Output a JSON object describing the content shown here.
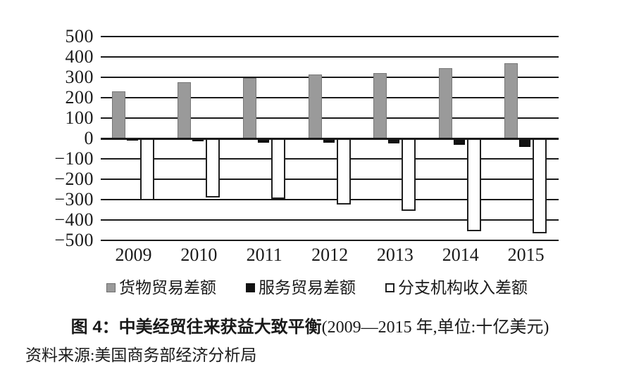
{
  "chart_data": {
    "type": "bar",
    "title": "图 4：中美经贸往来获益大致平衡",
    "subtitle": "(2009—2015 年,单位:十亿美元)",
    "categories": [
      "2009",
      "2010",
      "2011",
      "2012",
      "2013",
      "2014",
      "2015"
    ],
    "series": [
      {
        "name": "货物贸易差额",
        "color": "#9a9a9a",
        "values": [
          230,
          275,
          295,
          315,
          320,
          345,
          370
        ]
      },
      {
        "name": "服务贸易差额",
        "color": "#121212",
        "values": [
          -10,
          -15,
          -20,
          -20,
          -25,
          -30,
          -40
        ]
      },
      {
        "name": "分支机构收入差额",
        "color": "#ffffff",
        "values": [
          -305,
          -290,
          -295,
          -325,
          -355,
          -455,
          -465
        ]
      }
    ],
    "ylabel": "",
    "xlabel": "",
    "ylim": [
      -500,
      500
    ],
    "ytick_step": 100,
    "grid": "horizontal",
    "legend_position": "bottom"
  },
  "caption": {
    "title_bold": "图 4：中美经贸往来获益大致平衡",
    "title_paren": "(2009—2015 年,单位:十亿美元)"
  },
  "source": {
    "text": "资料来源:美国商务部经济分析局"
  }
}
